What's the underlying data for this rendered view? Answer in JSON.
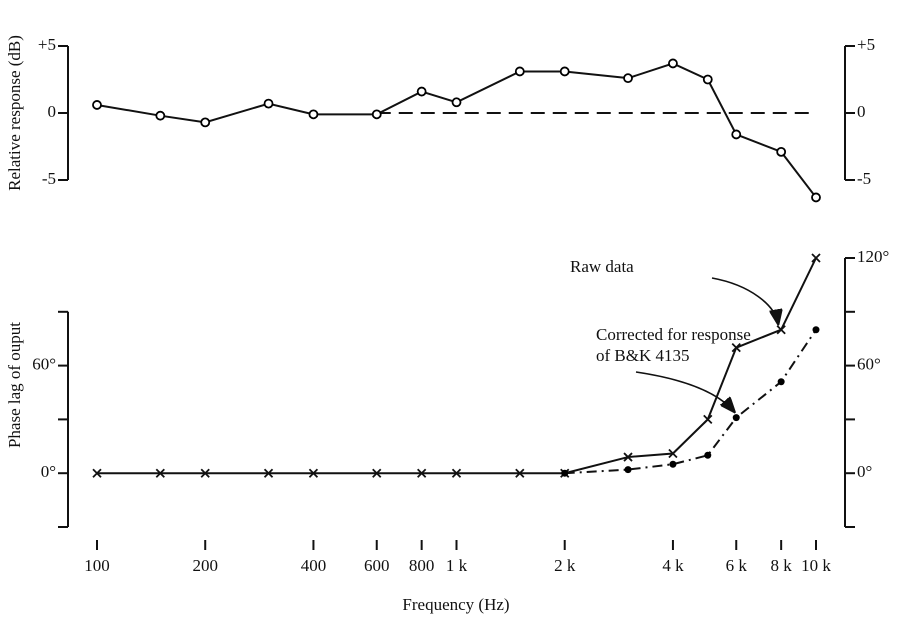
{
  "chart_data": [
    {
      "type": "line",
      "ylabel": "Relative response (dB)",
      "x": [
        100,
        150,
        200,
        300,
        400,
        600,
        800,
        1000,
        1500,
        2000,
        3000,
        4000,
        5000,
        6000,
        8000,
        10000
      ],
      "xlim": [
        100,
        10000
      ],
      "log_x": true,
      "ylim": [
        -5,
        5
      ],
      "yticks": [
        {
          "value": 5,
          "label": "+5"
        },
        0,
        -5
      ],
      "y2lim": [
        -5,
        5
      ],
      "y2ticks": [
        {
          "value": 5,
          "label": "+5"
        },
        0,
        -5
      ],
      "series": [
        {
          "color": "#000000",
          "style": "solid",
          "marker": "circle",
          "values": [
            0.6,
            -0.2,
            -0.7,
            0.7,
            -0.1,
            -0.1,
            1.6,
            0.8,
            3.1,
            3.1,
            2.6,
            3.7,
            2.5,
            -1.6,
            -2.9,
            -6.3
          ]
        }
      ],
      "reference_line": {
        "y": 0,
        "x": [
          600,
          10000
        ],
        "style": "dashed"
      }
    },
    {
      "type": "line",
      "ylabel": "Phase lag of ouput",
      "xlabel": "Frequency (Hz)",
      "xlim": [
        100,
        10000
      ],
      "log_x": true,
      "xticks": [
        100,
        200,
        400,
        600,
        800,
        {
          "value": 1000,
          "label": "1 k"
        },
        {
          "value": 2000,
          "label": "2 k"
        },
        {
          "value": 4000,
          "label": "4 k"
        },
        {
          "value": 6000,
          "label": "6 k"
        },
        {
          "value": 8000,
          "label": "8 k"
        },
        {
          "value": 10000,
          "label": "10 k"
        }
      ],
      "ylim": [
        -30,
        90
      ],
      "yticks": [
        {
          "value": 0,
          "label": "0°"
        },
        {
          "value": 60,
          "label": "60°"
        }
      ],
      "yminor_ticks": [
        -30,
        30,
        90
      ],
      "y2lim": [
        -30,
        120
      ],
      "y2ticks": [
        {
          "value": 0,
          "label": "0°"
        },
        {
          "value": 60,
          "label": "60°"
        },
        {
          "value": 120,
          "label": "120°"
        }
      ],
      "y2minor_ticks": [
        -30,
        30,
        90
      ],
      "series": [
        {
          "color": "#000000",
          "style": "solid",
          "marker": "x",
          "x": [
            100,
            150,
            200,
            300,
            400,
            600,
            800,
            1000,
            1500,
            2000,
            3000,
            4000,
            5000,
            6000,
            8000,
            10000
          ],
          "values": [
            0,
            0,
            0,
            0,
            0,
            0,
            0,
            0,
            0,
            0,
            9,
            11,
            30,
            70,
            80,
            120
          ]
        },
        {
          "color": "#000000",
          "style": "dashdot",
          "marker": "dot",
          "x": [
            2000,
            3000,
            4000,
            5000,
            6000,
            8000,
            10000
          ],
          "values": [
            0,
            2,
            5,
            10,
            31,
            51,
            80
          ]
        }
      ],
      "annotations": [
        {
          "text": [
            "Raw data"
          ]
        },
        {
          "text": [
            "Corrected for response",
            "of B&K 4135"
          ]
        }
      ]
    }
  ]
}
